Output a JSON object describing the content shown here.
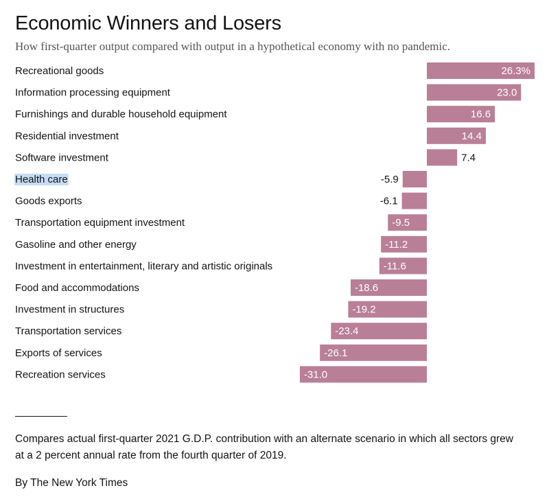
{
  "title": "Economic Winners and Losers",
  "subtitle": "How first-quarter output compared with output in a hypothetical economy with no pandemic.",
  "note": "Compares actual first-quarter 2021 G.D.P. contribution with an alternate scenario in which all sectors grew at a 2 percent annual rate from the fourth quarter of 2019.",
  "credit": "By The New York Times",
  "highlighted_category": "Health care",
  "colors": {
    "bar": "#b97f96",
    "highlight": "#c6dcf6"
  },
  "chart_data": {
    "type": "bar",
    "orientation": "horizontal",
    "title": "Economic Winners and Losers",
    "subtitle": "How first-quarter output compared with output in a hypothetical economy with no pandemic.",
    "categories": [
      "Recreational goods",
      "Information processing equipment",
      "Furnishings and durable household equipment",
      "Residential investment",
      "Software investment",
      "Health care",
      "Goods exports",
      "Transportation equipment investment",
      "Gasoline and other energy",
      "Investment in entertainment, literary and artistic originals",
      "Food and accommodations",
      "Investment in structures",
      "Transportation services",
      "Exports of services",
      "Recreation services"
    ],
    "values": [
      26.3,
      23.0,
      16.6,
      14.4,
      7.4,
      -5.9,
      -6.1,
      -9.5,
      -11.2,
      -11.6,
      -18.6,
      -19.2,
      -23.4,
      -26.1,
      -31.0
    ],
    "value_labels": [
      "26.3%",
      "23.0",
      "16.6",
      "14.4",
      "7.4",
      "-5.9",
      "-6.1",
      "-9.5",
      "-11.2",
      "-11.6",
      "-18.6",
      "-19.2",
      "-23.4",
      "-26.1",
      "-31.0"
    ],
    "xlim": [
      -31.0,
      26.3
    ],
    "grid": false,
    "legend": "none"
  }
}
